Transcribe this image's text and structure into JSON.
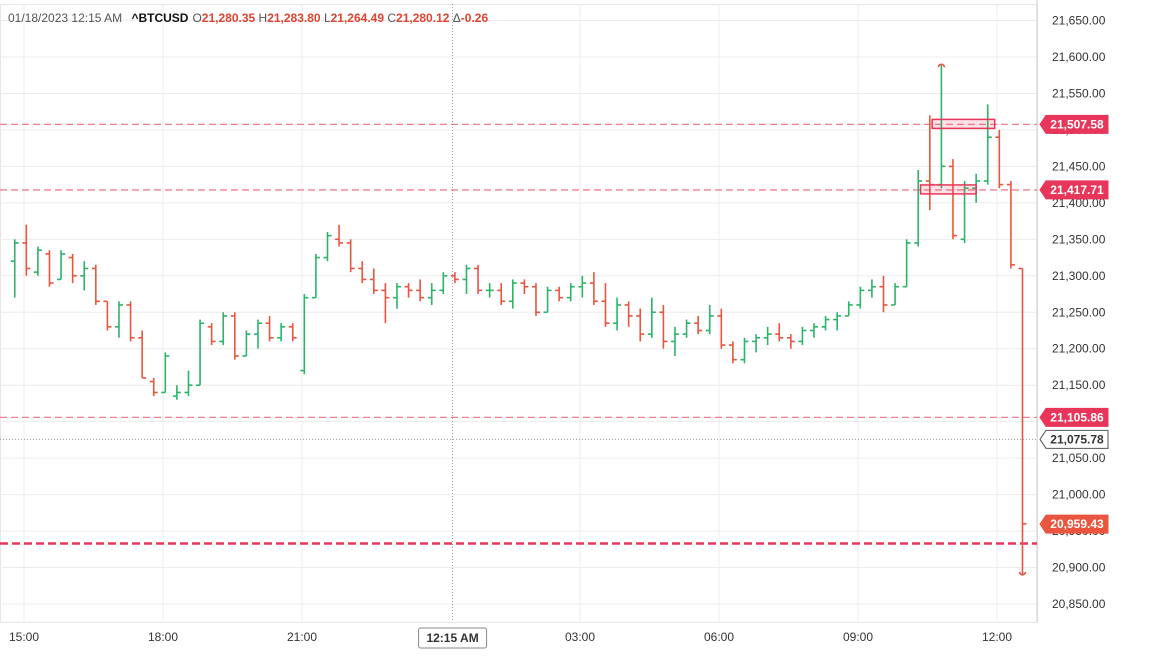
{
  "header": {
    "datetime": "01/18/2023 12:15 AM",
    "symbol": "^BTCUSD",
    "o_label": "O",
    "o_value": "21,280.35",
    "h_label": "H",
    "h_value": "21,283.80",
    "l_label": "L",
    "l_value": "21,264.49",
    "c_label": "C",
    "c_value": "21,280.12",
    "chg_label": "Δ",
    "chg_value": "-0.26"
  },
  "crosshair": {
    "time_label": "12:15 AM"
  },
  "colors": {
    "up": "#2db36a",
    "down": "#e9553f",
    "alert": "#e8365a",
    "grid": "#ececec",
    "axis_text": "#333333",
    "last": "#e9553f"
  },
  "chart_data": {
    "type": "ohlc",
    "ylim": [
      20830,
      21670
    ],
    "y_ticks": [
      20850,
      20900,
      20950,
      21000,
      21050,
      21100,
      21150,
      21200,
      21250,
      21300,
      21350,
      21400,
      21450,
      21500,
      21550,
      21600,
      21650
    ],
    "y_tick_labels": [
      "20,850.00",
      "20,900.00",
      "20,950.00",
      "21,000.00",
      "21,050.00",
      "21,100.00",
      "21,150.00",
      "21,200.00",
      "21,250.00",
      "21,300.00",
      "21,350.00",
      "21,400.00",
      "21,450.00",
      "21,500.00",
      "21,550.00",
      "21,600.00",
      "21,650.00"
    ],
    "x_ticks": [
      15,
      18,
      21,
      27,
      30,
      33,
      36
    ],
    "x_tick_labels": [
      "15:00",
      "18:00",
      "21:00",
      "03:00",
      "06:00",
      "09:00",
      "12:00"
    ],
    "time_unit": "hours from previous-day 00:00",
    "crosshair_time": 24.25,
    "bar_interval_hours": 0.25,
    "bars": [
      [
        14.8,
        21320,
        21350,
        21270,
        21345
      ],
      [
        15.05,
        21345,
        21370,
        21300,
        21310
      ],
      [
        15.3,
        21305,
        21340,
        21300,
        21335
      ],
      [
        15.55,
        21330,
        21335,
        21285,
        21290
      ],
      [
        15.8,
        21295,
        21335,
        21295,
        21330
      ],
      [
        16.05,
        21325,
        21330,
        21290,
        21300
      ],
      [
        16.3,
        21300,
        21320,
        21280,
        21310
      ],
      [
        16.55,
        21310,
        21315,
        21260,
        21265
      ],
      [
        16.8,
        21265,
        21265,
        21225,
        21230
      ],
      [
        17.05,
        21230,
        21265,
        21215,
        21260
      ],
      [
        17.3,
        21260,
        21265,
        21210,
        21215
      ],
      [
        17.55,
        21215,
        21225,
        21160,
        21160
      ],
      [
        17.8,
        21155,
        21160,
        21135,
        21140
      ],
      [
        18.05,
        21140,
        21195,
        21140,
        21190
      ],
      [
        18.3,
        21135,
        21150,
        21130,
        21140
      ],
      [
        18.55,
        21140,
        21170,
        21135,
        21150
      ],
      [
        18.8,
        21150,
        21240,
        21150,
        21235
      ],
      [
        19.05,
        21230,
        21235,
        21205,
        21210
      ],
      [
        19.3,
        21210,
        21250,
        21205,
        21245
      ],
      [
        19.55,
        21245,
        21250,
        21185,
        21190
      ],
      [
        19.8,
        21190,
        21225,
        21190,
        21220
      ],
      [
        20.05,
        21220,
        21240,
        21200,
        21235
      ],
      [
        20.3,
        21235,
        21245,
        21210,
        21215
      ],
      [
        20.55,
        21215,
        21235,
        21210,
        21230
      ],
      [
        20.8,
        21230,
        21235,
        21210,
        21215
      ],
      [
        21.05,
        21170,
        21275,
        21165,
        21270
      ],
      [
        21.3,
        21270,
        21330,
        21270,
        21325
      ],
      [
        21.55,
        21325,
        21360,
        21320,
        21355
      ],
      [
        21.8,
        21350,
        21370,
        21340,
        21345
      ],
      [
        22.05,
        21345,
        21350,
        21305,
        21310
      ],
      [
        22.3,
        21310,
        21320,
        21290,
        21295
      ],
      [
        22.55,
        21295,
        21310,
        21275,
        21280
      ],
      [
        22.8,
        21280,
        21290,
        21235,
        21270
      ],
      [
        23.05,
        21270,
        21290,
        21255,
        21285
      ],
      [
        23.3,
        21285,
        21290,
        21270,
        21280
      ],
      [
        23.55,
        21280,
        21295,
        21265,
        21270
      ],
      [
        23.8,
        21270,
        21290,
        21260,
        21280
      ],
      [
        24.05,
        21280,
        21305,
        21275,
        21300
      ],
      [
        24.3,
        21300,
        21305,
        21290,
        21295
      ],
      [
        24.55,
        21295,
        21315,
        21275,
        21310
      ],
      [
        24.8,
        21310,
        21315,
        21275,
        21280
      ],
      [
        25.05,
        21280,
        21290,
        21270,
        21280
      ],
      [
        25.3,
        21280,
        21290,
        21260,
        21265
      ],
      [
        25.55,
        21265,
        21295,
        21255,
        21290
      ],
      [
        25.8,
        21290,
        21295,
        21275,
        21285
      ],
      [
        26.05,
        21285,
        21290,
        21245,
        21250
      ],
      [
        26.3,
        21250,
        21285,
        21250,
        21280
      ],
      [
        26.55,
        21280,
        21285,
        21265,
        21270
      ],
      [
        26.8,
        21270,
        21290,
        21265,
        21285
      ],
      [
        27.05,
        21285,
        21300,
        21270,
        21290
      ],
      [
        27.3,
        21290,
        21305,
        21260,
        21265
      ],
      [
        27.55,
        21265,
        21290,
        21230,
        21235
      ],
      [
        27.8,
        21235,
        21270,
        21225,
        21260
      ],
      [
        28.05,
        21260,
        21265,
        21230,
        21245
      ],
      [
        28.3,
        21245,
        21255,
        21210,
        21220
      ],
      [
        28.55,
        21220,
        21270,
        21215,
        21250
      ],
      [
        28.8,
        21250,
        21260,
        21200,
        21210
      ],
      [
        29.05,
        21210,
        21230,
        21190,
        21220
      ],
      [
        29.3,
        21220,
        21240,
        21215,
        21235
      ],
      [
        29.55,
        21235,
        21245,
        21220,
        21225
      ],
      [
        29.8,
        21225,
        21260,
        21220,
        21245
      ],
      [
        30.05,
        21245,
        21255,
        21200,
        21205
      ],
      [
        30.3,
        21205,
        21210,
        21180,
        21185
      ],
      [
        30.55,
        21185,
        21215,
        21180,
        21210
      ],
      [
        30.8,
        21210,
        21220,
        21195,
        21215
      ],
      [
        31.05,
        21215,
        21230,
        21205,
        21220
      ],
      [
        31.3,
        21220,
        21235,
        21210,
        21215
      ],
      [
        31.55,
        21215,
        21220,
        21200,
        21210
      ],
      [
        31.8,
        21210,
        21230,
        21205,
        21225
      ],
      [
        32.05,
        21225,
        21235,
        21215,
        21230
      ],
      [
        32.3,
        21230,
        21245,
        21225,
        21240
      ],
      [
        32.55,
        21240,
        21250,
        21225,
        21245
      ],
      [
        32.8,
        21245,
        21265,
        21245,
        21260
      ],
      [
        33.05,
        21260,
        21285,
        21255,
        21280
      ],
      [
        33.3,
        21280,
        21295,
        21270,
        21285
      ],
      [
        33.55,
        21285,
        21300,
        21250,
        21260
      ],
      [
        33.8,
        21260,
        21290,
        21260,
        21285
      ],
      [
        34.05,
        21285,
        21350,
        21285,
        21345
      ],
      [
        34.3,
        21345,
        21445,
        21340,
        21430
      ],
      [
        34.55,
        21430,
        21520,
        21390,
        21425
      ],
      [
        34.8,
        21425,
        21590,
        21420,
        21450
      ],
      [
        35.05,
        21450,
        21460,
        21350,
        21355
      ],
      [
        35.3,
        21350,
        21430,
        21345,
        21420
      ],
      [
        35.55,
        21420,
        21440,
        21400,
        21430
      ],
      [
        35.8,
        21430,
        21535,
        21425,
        21490
      ],
      [
        36.05,
        21490,
        21500,
        21420,
        21425
      ],
      [
        36.3,
        21425,
        21430,
        21310,
        21315
      ],
      [
        36.55,
        21310,
        21310,
        20890,
        20960
      ]
    ],
    "price_lines": [
      {
        "value": 21507.58,
        "label": "21,507.58",
        "style": "alert"
      },
      {
        "value": 21417.71,
        "label": "21,417.71",
        "style": "alert"
      },
      {
        "value": 21105.86,
        "label": "21,105.86",
        "style": "alert"
      },
      {
        "value": 21075.78,
        "label": "21,075.78",
        "style": "crosshair"
      },
      {
        "value": 20959.43,
        "label": "20,959.43",
        "style": "last"
      },
      {
        "value": 20933,
        "label": "",
        "style": "bold-dashed"
      }
    ],
    "alert_boxes": [
      {
        "x0": 34.6,
        "x1": 35.95,
        "value": 21507.58
      },
      {
        "x0": 34.35,
        "x1": 35.55,
        "value": 21417.71
      }
    ]
  }
}
